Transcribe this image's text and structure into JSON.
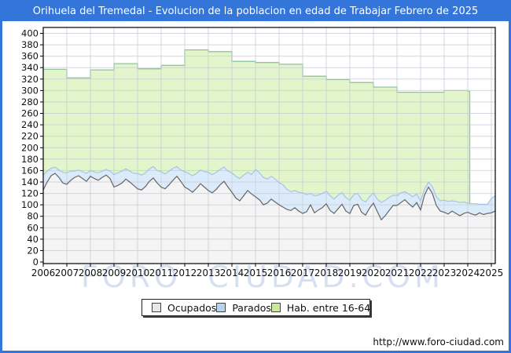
{
  "title": "Orihuela del Tremedal - Evolucion de la poblacion en edad de Trabajar Febrero de 2025",
  "watermark": "FORO CIUDAD.COM",
  "footer": {
    "url": "http://www.foro-ciudad.com"
  },
  "colors": {
    "frame": "#3375d9",
    "grid": "#c7c9d6",
    "plot_border": "#000000",
    "hab_fill": "#e3f6cb",
    "hab_stroke": "#8cc49b",
    "parados_fill": "#dcebf9",
    "parados_stroke": "#a5c5e5",
    "ocupados_fill": "#f4f4f4",
    "ocupados_stroke": "#666666"
  },
  "legend": [
    {
      "label": "Ocupados",
      "swatch": "#e8e8e8"
    },
    {
      "label": "Parados",
      "swatch": "#b7d3ed"
    },
    {
      "label": "Hab. entre 16-64",
      "swatch": "#cbe79b"
    }
  ],
  "chart_data": {
    "type": "area",
    "title": "Orihuela del Tremedal - Evolucion de la poblacion en edad de Trabajar Febrero de 2025",
    "xlabel": "",
    "ylabel": "",
    "grid": true,
    "legend_position": "bottom",
    "x_axis": {
      "min": 2006,
      "max": 2025.17,
      "tick_labels": [
        "2006",
        "2007",
        "2008",
        "2009",
        "2010",
        "2011",
        "2012",
        "2013",
        "2014",
        "2015",
        "2016",
        "2017",
        "2018",
        "2019",
        "2020",
        "2021",
        "2022",
        "2023",
        "2024",
        "2025"
      ]
    },
    "y_axis": {
      "min": 0,
      "max": 400,
      "step": 20,
      "tick_labels": [
        "0",
        "20",
        "40",
        "60",
        "80",
        "100",
        "120",
        "140",
        "160",
        "180",
        "200",
        "220",
        "240",
        "260",
        "280",
        "300",
        "320",
        "340",
        "360",
        "380",
        "400"
      ]
    },
    "series": [
      {
        "name": "Hab. entre 16-64",
        "mode": "step-yearly",
        "x_start": 2006,
        "x_step": 1,
        "x_end": 2024.083,
        "values": [
          337,
          322,
          336,
          347,
          338,
          344,
          371,
          368,
          351,
          349,
          346,
          325,
          319,
          314,
          306,
          297,
          297,
          300,
          299
        ]
      },
      {
        "name": "Parados",
        "mode": "line",
        "stacked_on": "Ocupados",
        "x_start": 2006,
        "x_step": 0.16667,
        "values": [
          26,
          19,
          13,
          11,
          13,
          19,
          20,
          16,
          11,
          10,
          12,
          14,
          10,
          12,
          13,
          11,
          10,
          13,
          22,
          22,
          21,
          18,
          19,
          21,
          27,
          26,
          24,
          22,
          20,
          22,
          27,
          26,
          24,
          21,
          17,
          20,
          27,
          28,
          29,
          26,
          24,
          27,
          32,
          32,
          30,
          27,
          25,
          28,
          34,
          38,
          39,
          36,
          32,
          34,
          48,
          47,
          48,
          42,
          40,
          40,
          39,
          39,
          35,
          33,
          30,
          33,
          36,
          30,
          20,
          30,
          26,
          25,
          22,
          26,
          25,
          24,
          20,
          24,
          23,
          19,
          19,
          22,
          23,
          20,
          18,
          22,
          30,
          27,
          23,
          18,
          17,
          17,
          14,
          17,
          18,
          15,
          16,
          10,
          9,
          12,
          15,
          18,
          21,
          22,
          18,
          21,
          23,
          20,
          16,
          18,
          20,
          15,
          18,
          16,
          25,
          27
        ]
      },
      {
        "name": "Ocupados",
        "mode": "line",
        "x_start": 2006,
        "x_step": 0.16667,
        "values": [
          126,
          140,
          151,
          155,
          148,
          138,
          136,
          143,
          148,
          151,
          146,
          141,
          150,
          146,
          143,
          148,
          152,
          146,
          131,
          134,
          138,
          145,
          140,
          134,
          128,
          126,
          132,
          141,
          147,
          138,
          131,
          128,
          135,
          143,
          150,
          141,
          131,
          127,
          122,
          129,
          137,
          131,
          125,
          121,
          127,
          135,
          141,
          131,
          122,
          112,
          107,
          116,
          125,
          119,
          114,
          109,
          100,
          103,
          110,
          105,
          100,
          96,
          92,
          90,
          95,
          89,
          85,
          88,
          100,
          86,
          91,
          95,
          102,
          90,
          85,
          93,
          101,
          89,
          85,
          99,
          101,
          87,
          82,
          94,
          103,
          88,
          74,
          81,
          90,
          99,
          99,
          104,
          109,
          102,
          96,
          104,
          91,
          117,
          131,
          120,
          99,
          89,
          87,
          84,
          89,
          85,
          81,
          85,
          87,
          84,
          82,
          86,
          83,
          85,
          86,
          89
        ]
      }
    ]
  }
}
